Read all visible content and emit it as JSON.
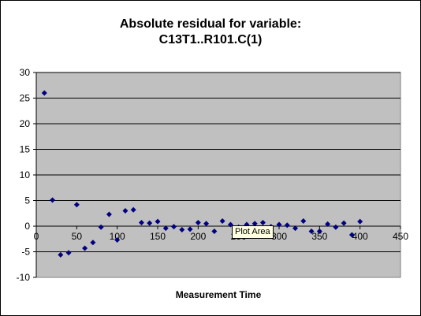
{
  "chart_data": {
    "type": "scatter",
    "title_lines": [
      "Absolute residual for variable:",
      "C13T1..R101.C(1)"
    ],
    "xlabel": "Measurement Time",
    "ylabel": "",
    "xlim": [
      0,
      450
    ],
    "ylim": [
      -10,
      30
    ],
    "x_ticks": [
      0,
      50,
      100,
      150,
      200,
      250,
      300,
      350,
      400,
      450
    ],
    "y_ticks": [
      -10,
      -5,
      0,
      5,
      10,
      15,
      20,
      25,
      30
    ],
    "grid": {
      "horizontal": true,
      "vertical": false
    },
    "legend": "none",
    "series": [
      {
        "x": [
          10,
          20,
          30,
          40,
          50,
          60,
          70,
          80,
          90,
          100,
          110,
          120,
          130,
          140,
          150,
          160,
          170,
          180,
          190,
          200,
          210,
          220,
          230,
          240,
          250,
          260,
          270,
          280,
          290,
          300,
          310,
          320,
          330,
          340,
          350,
          360,
          370,
          380,
          390,
          400
        ],
        "y": [
          26,
          5.1,
          -5.6,
          -5.2,
          4.2,
          -4.3,
          -3.2,
          -0.2,
          2.3,
          -2.7,
          3.0,
          3.2,
          0.7,
          0.6,
          0.9,
          -0.4,
          -0.1,
          -0.7,
          -0.6,
          0.7,
          0.5,
          -1.0,
          1.0,
          0.3,
          -0.2,
          0.3,
          0.5,
          0.7,
          -0.1,
          0.3,
          0.2,
          -0.4,
          1.0,
          -1.0,
          -1.0,
          0.4,
          -0.2,
          0.6,
          -1.7,
          0.9
        ]
      }
    ]
  },
  "colors": {
    "plot_area": "#c0c0c0",
    "marker": "#000080",
    "gridline": "#000000"
  },
  "tooltip": {
    "text": "Plot Area"
  }
}
